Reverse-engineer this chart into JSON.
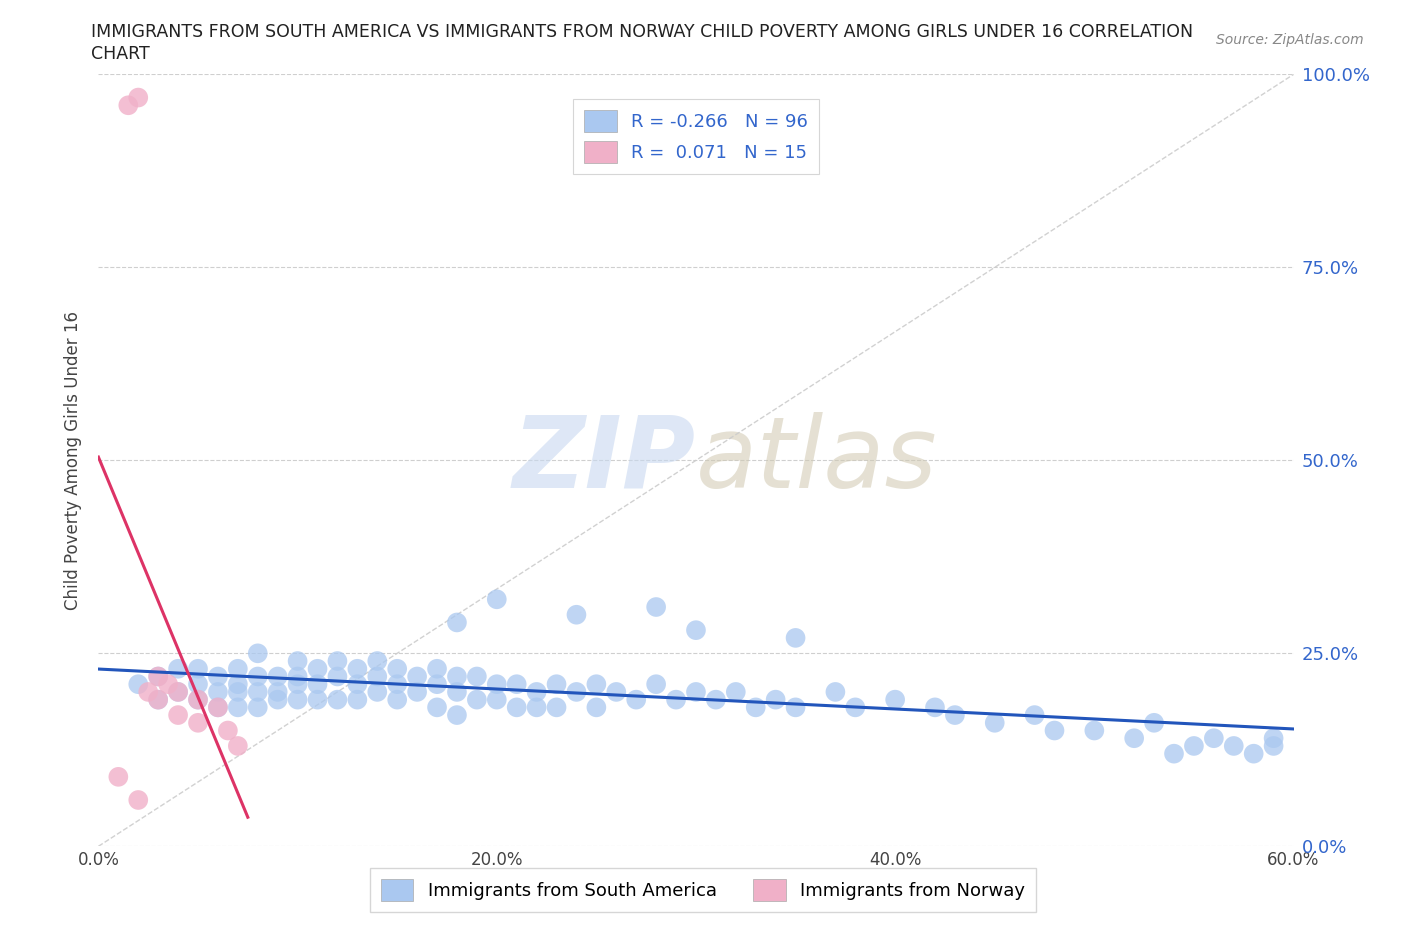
{
  "title_line1": "IMMIGRANTS FROM SOUTH AMERICA VS IMMIGRANTS FROM NORWAY CHILD POVERTY AMONG GIRLS UNDER 16 CORRELATION",
  "title_line2": "CHART",
  "source_text": "Source: ZipAtlas.com",
  "ylabel": "Child Poverty Among Girls Under 16",
  "watermark_zip": "ZIP",
  "watermark_atlas": "atlas",
  "R_blue": -0.266,
  "N_blue": 96,
  "R_pink": 0.071,
  "N_pink": 15,
  "legend_blue_label": "Immigrants from South America",
  "legend_pink_label": "Immigrants from Norway",
  "xlim": [
    0,
    0.6
  ],
  "ylim": [
    0,
    1.0
  ],
  "xtick_labels": [
    "0.0%",
    "20.0%",
    "40.0%",
    "60.0%"
  ],
  "xtick_vals": [
    0.0,
    0.2,
    0.4,
    0.6
  ],
  "ytick_vals": [
    0.0,
    0.25,
    0.5,
    0.75,
    1.0
  ],
  "right_ytick_labels": [
    "0.0%",
    "25.0%",
    "50.0%",
    "75.0%",
    "100.0%"
  ],
  "right_ytick_vals": [
    0.0,
    0.25,
    0.5,
    0.75,
    1.0
  ],
  "blue_color": "#aac8f0",
  "blue_line_color": "#2255bb",
  "pink_color": "#f0b0c8",
  "pink_line_color": "#dd3366",
  "diag_color": "#cccccc",
  "grid_color": "#bbbbbb",
  "background_color": "#ffffff",
  "blue_scatter_x": [
    0.02,
    0.03,
    0.03,
    0.04,
    0.04,
    0.05,
    0.05,
    0.05,
    0.06,
    0.06,
    0.06,
    0.07,
    0.07,
    0.07,
    0.07,
    0.08,
    0.08,
    0.08,
    0.08,
    0.09,
    0.09,
    0.09,
    0.1,
    0.1,
    0.1,
    0.1,
    0.11,
    0.11,
    0.11,
    0.12,
    0.12,
    0.12,
    0.13,
    0.13,
    0.13,
    0.14,
    0.14,
    0.14,
    0.15,
    0.15,
    0.15,
    0.16,
    0.16,
    0.17,
    0.17,
    0.17,
    0.18,
    0.18,
    0.18,
    0.19,
    0.19,
    0.2,
    0.2,
    0.21,
    0.21,
    0.22,
    0.22,
    0.23,
    0.23,
    0.24,
    0.25,
    0.25,
    0.26,
    0.27,
    0.28,
    0.29,
    0.3,
    0.31,
    0.32,
    0.33,
    0.34,
    0.35,
    0.37,
    0.38,
    0.4,
    0.42,
    0.43,
    0.45,
    0.47,
    0.48,
    0.5,
    0.52,
    0.53,
    0.54,
    0.55,
    0.56,
    0.57,
    0.58,
    0.59,
    0.59,
    0.24,
    0.28,
    0.18,
    0.2,
    0.3,
    0.35
  ],
  "blue_scatter_y": [
    0.21,
    0.19,
    0.22,
    0.2,
    0.23,
    0.21,
    0.19,
    0.23,
    0.2,
    0.22,
    0.18,
    0.21,
    0.23,
    0.2,
    0.18,
    0.22,
    0.2,
    0.25,
    0.18,
    0.22,
    0.2,
    0.19,
    0.24,
    0.21,
    0.19,
    0.22,
    0.23,
    0.21,
    0.19,
    0.24,
    0.22,
    0.19,
    0.23,
    0.21,
    0.19,
    0.24,
    0.22,
    0.2,
    0.23,
    0.21,
    0.19,
    0.22,
    0.2,
    0.23,
    0.21,
    0.18,
    0.22,
    0.2,
    0.17,
    0.22,
    0.19,
    0.21,
    0.19,
    0.21,
    0.18,
    0.2,
    0.18,
    0.21,
    0.18,
    0.2,
    0.21,
    0.18,
    0.2,
    0.19,
    0.21,
    0.19,
    0.2,
    0.19,
    0.2,
    0.18,
    0.19,
    0.18,
    0.2,
    0.18,
    0.19,
    0.18,
    0.17,
    0.16,
    0.17,
    0.15,
    0.15,
    0.14,
    0.16,
    0.12,
    0.13,
    0.14,
    0.13,
    0.12,
    0.14,
    0.13,
    0.3,
    0.31,
    0.29,
    0.32,
    0.28,
    0.27
  ],
  "pink_scatter_x": [
    0.015,
    0.02,
    0.025,
    0.03,
    0.03,
    0.035,
    0.04,
    0.04,
    0.05,
    0.05,
    0.06,
    0.065,
    0.07,
    0.01,
    0.02
  ],
  "pink_scatter_y": [
    0.96,
    0.97,
    0.2,
    0.19,
    0.22,
    0.21,
    0.2,
    0.17,
    0.19,
    0.16,
    0.18,
    0.15,
    0.13,
    0.09,
    0.06
  ]
}
